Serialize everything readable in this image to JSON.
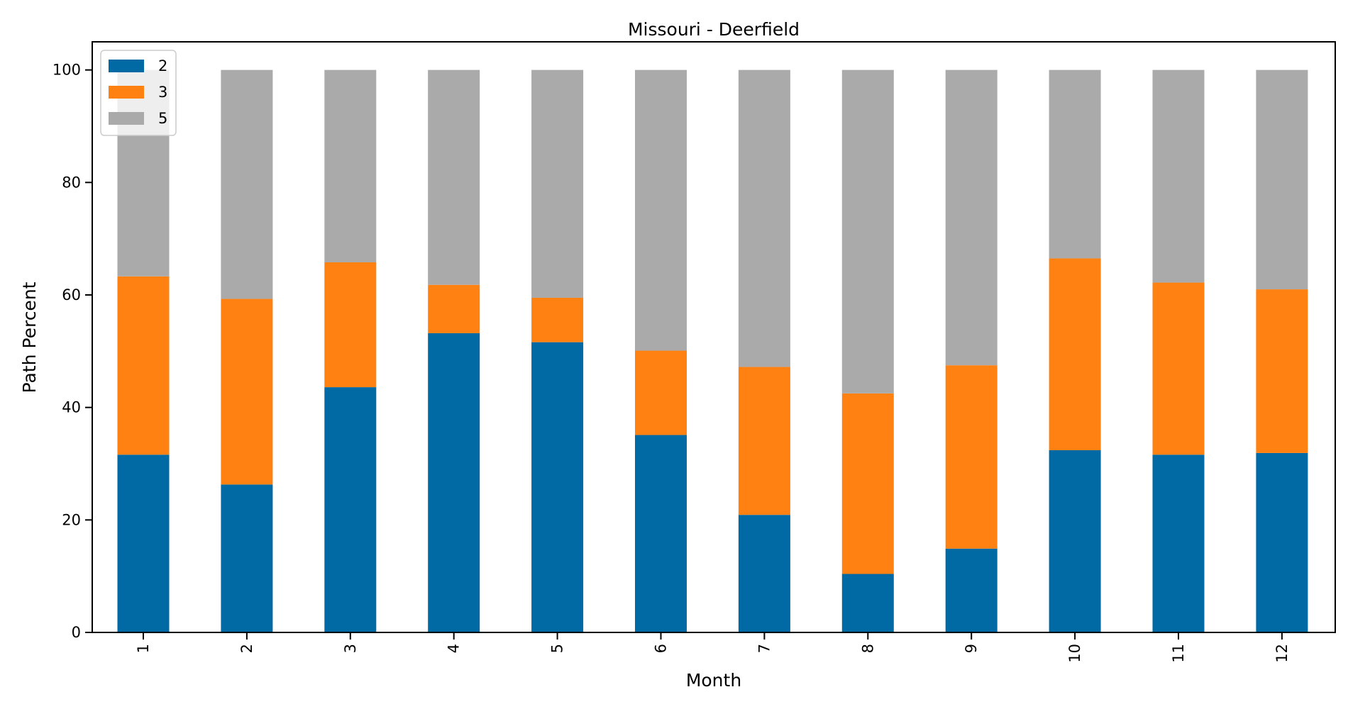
{
  "chart_data": {
    "type": "bar",
    "stacked": true,
    "title": "Missouri - Deerfield",
    "xlabel": "Month",
    "ylabel": "Path Percent",
    "categories": [
      "1",
      "2",
      "3",
      "4",
      "5",
      "6",
      "7",
      "8",
      "9",
      "10",
      "11",
      "12"
    ],
    "ylim": [
      0,
      105
    ],
    "yticks": [
      "0",
      "20",
      "40",
      "60",
      "80",
      "100"
    ],
    "legend_position": "top-left",
    "grid": false,
    "series": [
      {
        "name": "2",
        "color": "#016aa5",
        "values": [
          31.6,
          26.3,
          43.6,
          53.2,
          51.6,
          35.1,
          20.9,
          10.4,
          14.9,
          32.4,
          31.6,
          31.9
        ]
      },
      {
        "name": "3",
        "color": "#fe8112",
        "values": [
          31.7,
          33.0,
          22.2,
          8.6,
          7.9,
          15.0,
          26.3,
          32.1,
          32.6,
          34.1,
          30.6,
          29.1
        ]
      },
      {
        "name": "5",
        "color": "#aaaaaa",
        "values": [
          36.7,
          40.7,
          34.2,
          38.2,
          40.5,
          49.9,
          52.8,
          57.5,
          52.5,
          33.5,
          37.8,
          39.0
        ]
      }
    ]
  }
}
